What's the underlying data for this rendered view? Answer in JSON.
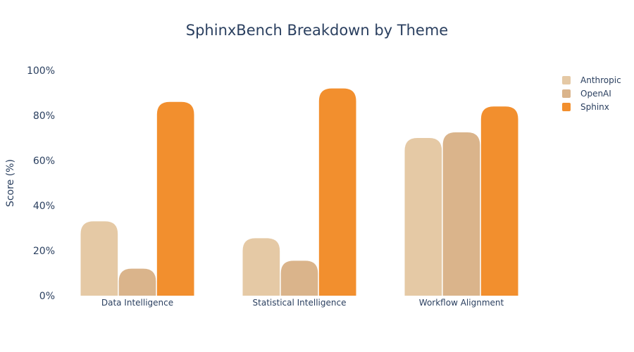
{
  "chart_data": {
    "type": "bar",
    "title": "SphinxBench Breakdown by Theme",
    "xlabel": "",
    "ylabel": "Score (%)",
    "ylim": [
      0,
      100
    ],
    "ytick_values": [
      0,
      20,
      40,
      60,
      80,
      100
    ],
    "ytick_labels": [
      "0%",
      "20%",
      "40%",
      "60%",
      "80%",
      "100%"
    ],
    "categories": [
      "Data Intelligence",
      "Statistical Intelligence",
      "Workflow Alignment"
    ],
    "series": [
      {
        "name": "Anthropic",
        "color": "#e5c9a5",
        "values": [
          33,
          25.5,
          70
        ]
      },
      {
        "name": "OpenAI",
        "color": "#dab48b",
        "values": [
          12,
          15.5,
          72.5
        ]
      },
      {
        "name": "Sphinx",
        "color": "#f28f2e",
        "values": [
          86,
          92,
          84
        ]
      }
    ],
    "grid": false,
    "legend_position": "top-right"
  }
}
